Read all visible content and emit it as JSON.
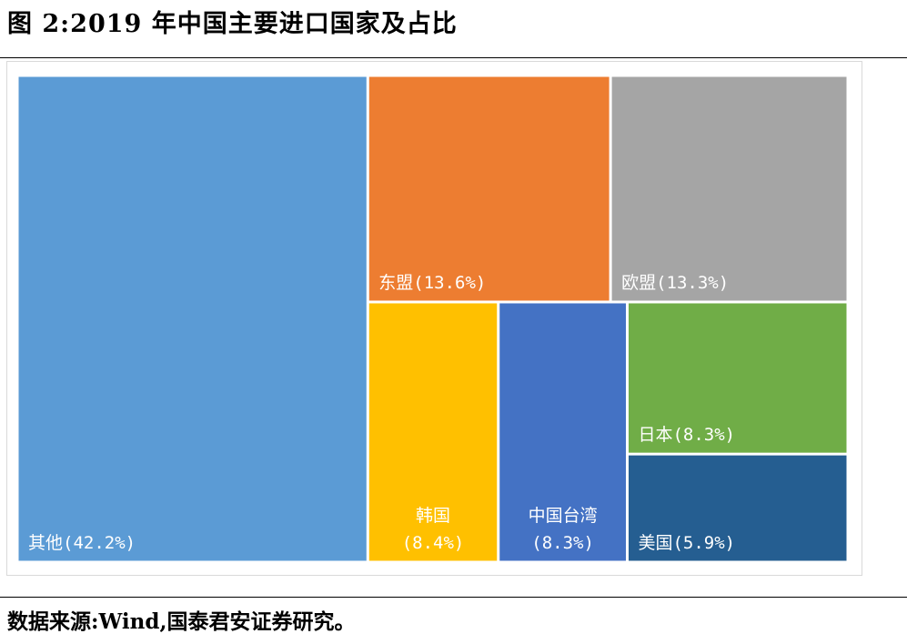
{
  "figure": {
    "title": "图 2:2019 年中国主要进口国家及占比",
    "source": "数据来源:Wind,国泰君安证券研究。"
  },
  "chart_data": {
    "type": "treemap",
    "title": "",
    "unit": "%",
    "categories": [
      "其他",
      "东盟",
      "欧盟",
      "韩国",
      "中国台湾",
      "日本",
      "美国"
    ],
    "values": [
      42.2,
      13.6,
      13.3,
      8.4,
      8.3,
      8.3,
      5.9
    ],
    "labels": [
      [
        "其他(42.2%)"
      ],
      [
        "东盟(13.6%)"
      ],
      [
        "欧盟(13.3%)"
      ],
      [
        "韩国",
        "(8.4%)"
      ],
      [
        "中国台湾",
        "(8.3%)"
      ],
      [
        "日本(8.3%)"
      ],
      [
        "美国(5.9%)"
      ]
    ],
    "colors": [
      "#5b9bd5",
      "#ed7d31",
      "#a5a5a5",
      "#ffc000",
      "#4472c4",
      "#70ad47",
      "#255e91"
    ]
  }
}
